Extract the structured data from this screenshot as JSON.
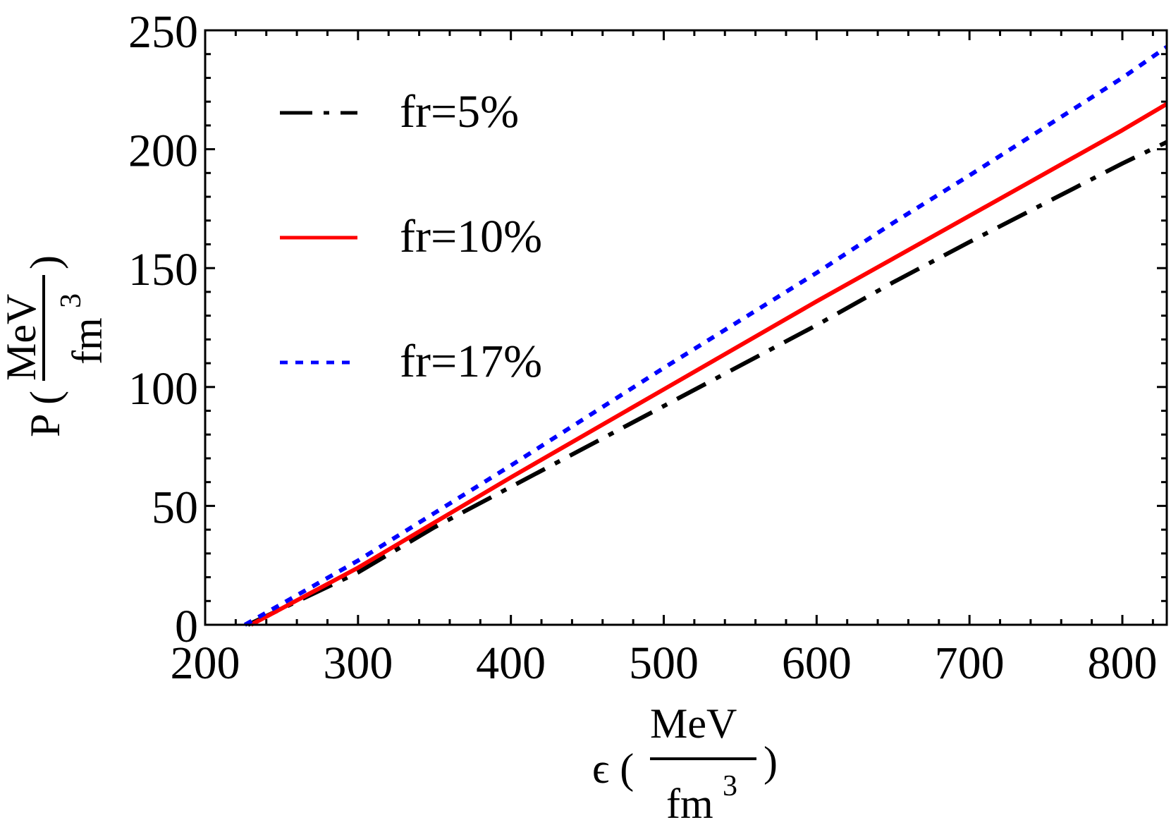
{
  "chart_data": {
    "type": "line",
    "title": "",
    "xlabel": "ε (MeV/fm³)",
    "ylabel": "P (MeV/fm³)",
    "xlim": [
      200,
      829
    ],
    "ylim": [
      0,
      250
    ],
    "grid": false,
    "legend_position": "upper-left",
    "x_ticks": [
      200,
      300,
      400,
      500,
      600,
      700,
      800
    ],
    "y_ticks": [
      0,
      50,
      100,
      150,
      200,
      250
    ],
    "x_minor_step": 20,
    "y_minor_step": 10,
    "series": [
      {
        "name": "fr=5%",
        "color": "#000000",
        "style": "dash-dot",
        "x": [
          228,
          300,
          350,
          400,
          500,
          600,
          650,
          700,
          800,
          829
        ],
        "y": [
          0,
          22,
          41,
          58,
          92,
          126,
          144,
          161,
          194,
          203
        ]
      },
      {
        "name": "fr=10%",
        "color": "#ff0000",
        "style": "solid",
        "x": [
          230,
          300,
          350,
          400,
          500,
          600,
          650,
          700,
          800,
          829
        ],
        "y": [
          0,
          24,
          43,
          62,
          99,
          136,
          154,
          172,
          208,
          219
        ]
      },
      {
        "name": "fr=17%",
        "color": "#0000ff",
        "style": "dotted",
        "x": [
          226,
          300,
          350,
          400,
          500,
          600,
          650,
          700,
          800,
          829
        ],
        "y": [
          0,
          27,
          47,
          67,
          108,
          148,
          169,
          189,
          230,
          243
        ]
      }
    ]
  },
  "axes": {
    "x_title_symbol": "ϵ (",
    "x_title_num": "MeV",
    "x_title_den": "fm",
    "x_title_sup": "3",
    "x_title_close": ")",
    "y_title_symbol": "P (",
    "y_title_num": "MeV",
    "y_title_den": "fm",
    "y_title_sup": "3",
    "y_title_close": ")"
  },
  "legend": {
    "items": [
      {
        "label": "fr=5%"
      },
      {
        "label": "fr=10%"
      },
      {
        "label": "fr=17%"
      }
    ]
  }
}
